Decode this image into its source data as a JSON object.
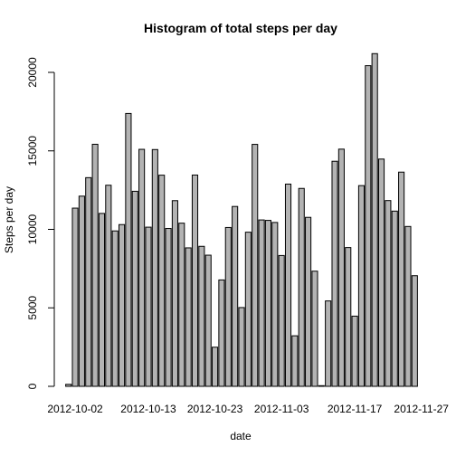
{
  "chart_data": {
    "type": "bar",
    "title": "Histogram of total steps per day",
    "xlabel": "date",
    "ylabel": "Steps per day",
    "ylim": [
      0,
      22000
    ],
    "y_ticks": [
      0,
      5000,
      10000,
      15000,
      20000
    ],
    "x_tick_labels": [
      "2012-10-02",
      "2012-10-13",
      "2012-10-23",
      "2012-11-03",
      "2012-11-17",
      "2012-11-27"
    ],
    "x_tick_indices": [
      1,
      12,
      22,
      32,
      43,
      53
    ],
    "values": [
      126,
      11352,
      12116,
      13294,
      15420,
      11015,
      12811,
      9900,
      10304,
      17382,
      12426,
      15098,
      10139,
      15084,
      13452,
      10056,
      11829,
      10395,
      8821,
      13460,
      8918,
      8355,
      2492,
      6778,
      10119,
      11458,
      5018,
      9819,
      15414,
      10600,
      10571,
      10439,
      8334,
      12883,
      3219,
      12608,
      10765,
      7336,
      41,
      5441,
      14339,
      15110,
      8841,
      4472,
      12787,
      20427,
      21194,
      14478,
      11834,
      11162,
      13646,
      10183,
      7047
    ],
    "grid": false,
    "legend": "none"
  }
}
